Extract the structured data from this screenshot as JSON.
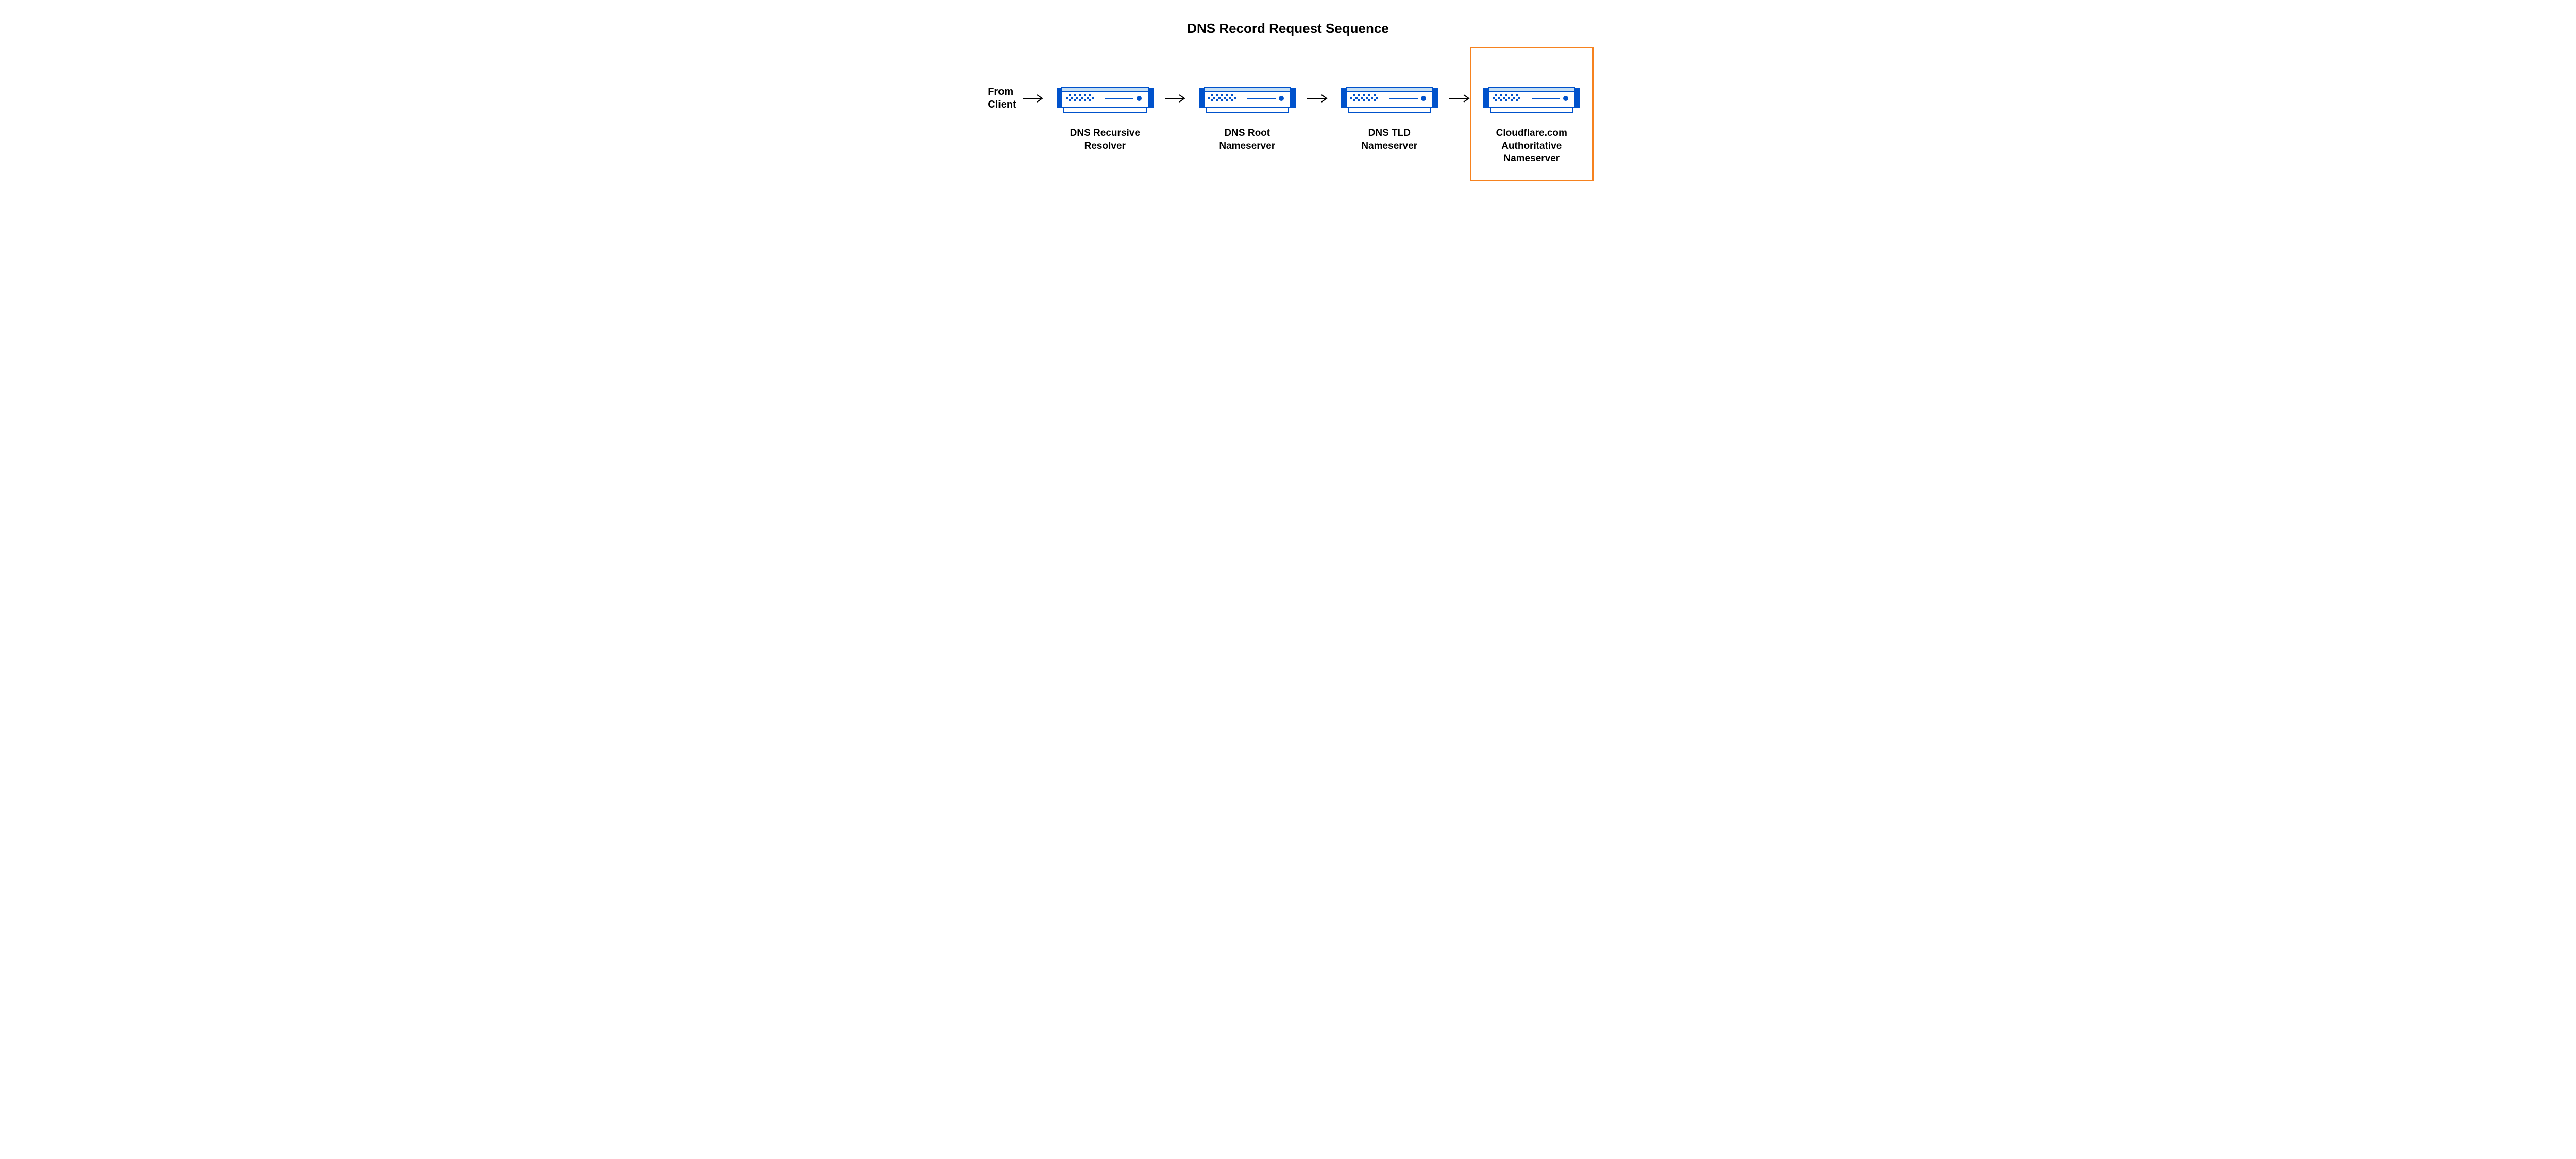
{
  "diagram": {
    "type": "flowchart",
    "title": "DNS Record Request Sequence",
    "title_fontsize": 26,
    "title_fontweight": 700,
    "title_color": "#000000",
    "background_color": "#ffffff",
    "source_label": "From\nClient",
    "source_fontsize": 20,
    "nodes": [
      {
        "id": "resolver",
        "label": "DNS Recursive\nResolver",
        "highlighted": false
      },
      {
        "id": "root",
        "label": "DNS Root\nNameserver",
        "highlighted": false
      },
      {
        "id": "tld",
        "label": "DNS TLD\nNameserver",
        "highlighted": false
      },
      {
        "id": "authoritative",
        "label": "Cloudflare.com\nAuthoritative\nNameserver",
        "highlighted": true
      }
    ],
    "node_label_fontsize": 19,
    "node_label_fontweight": 600,
    "node_label_color": "#000000",
    "arrow_color": "#000000",
    "arrow_stroke_width": 2,
    "highlight_border_color": "#f6821f",
    "highlight_border_width": 2,
    "server_colors": {
      "outline": "#0052cc",
      "side_bars": "#0052cc",
      "top_bar_fill": "#c7e0f4",
      "body_fill": "#ffffff",
      "pixel_pattern": "#0052cc",
      "inner_line": "#0052cc",
      "led_dot": "#0052cc",
      "shelf_outline": "#0052cc"
    }
  }
}
